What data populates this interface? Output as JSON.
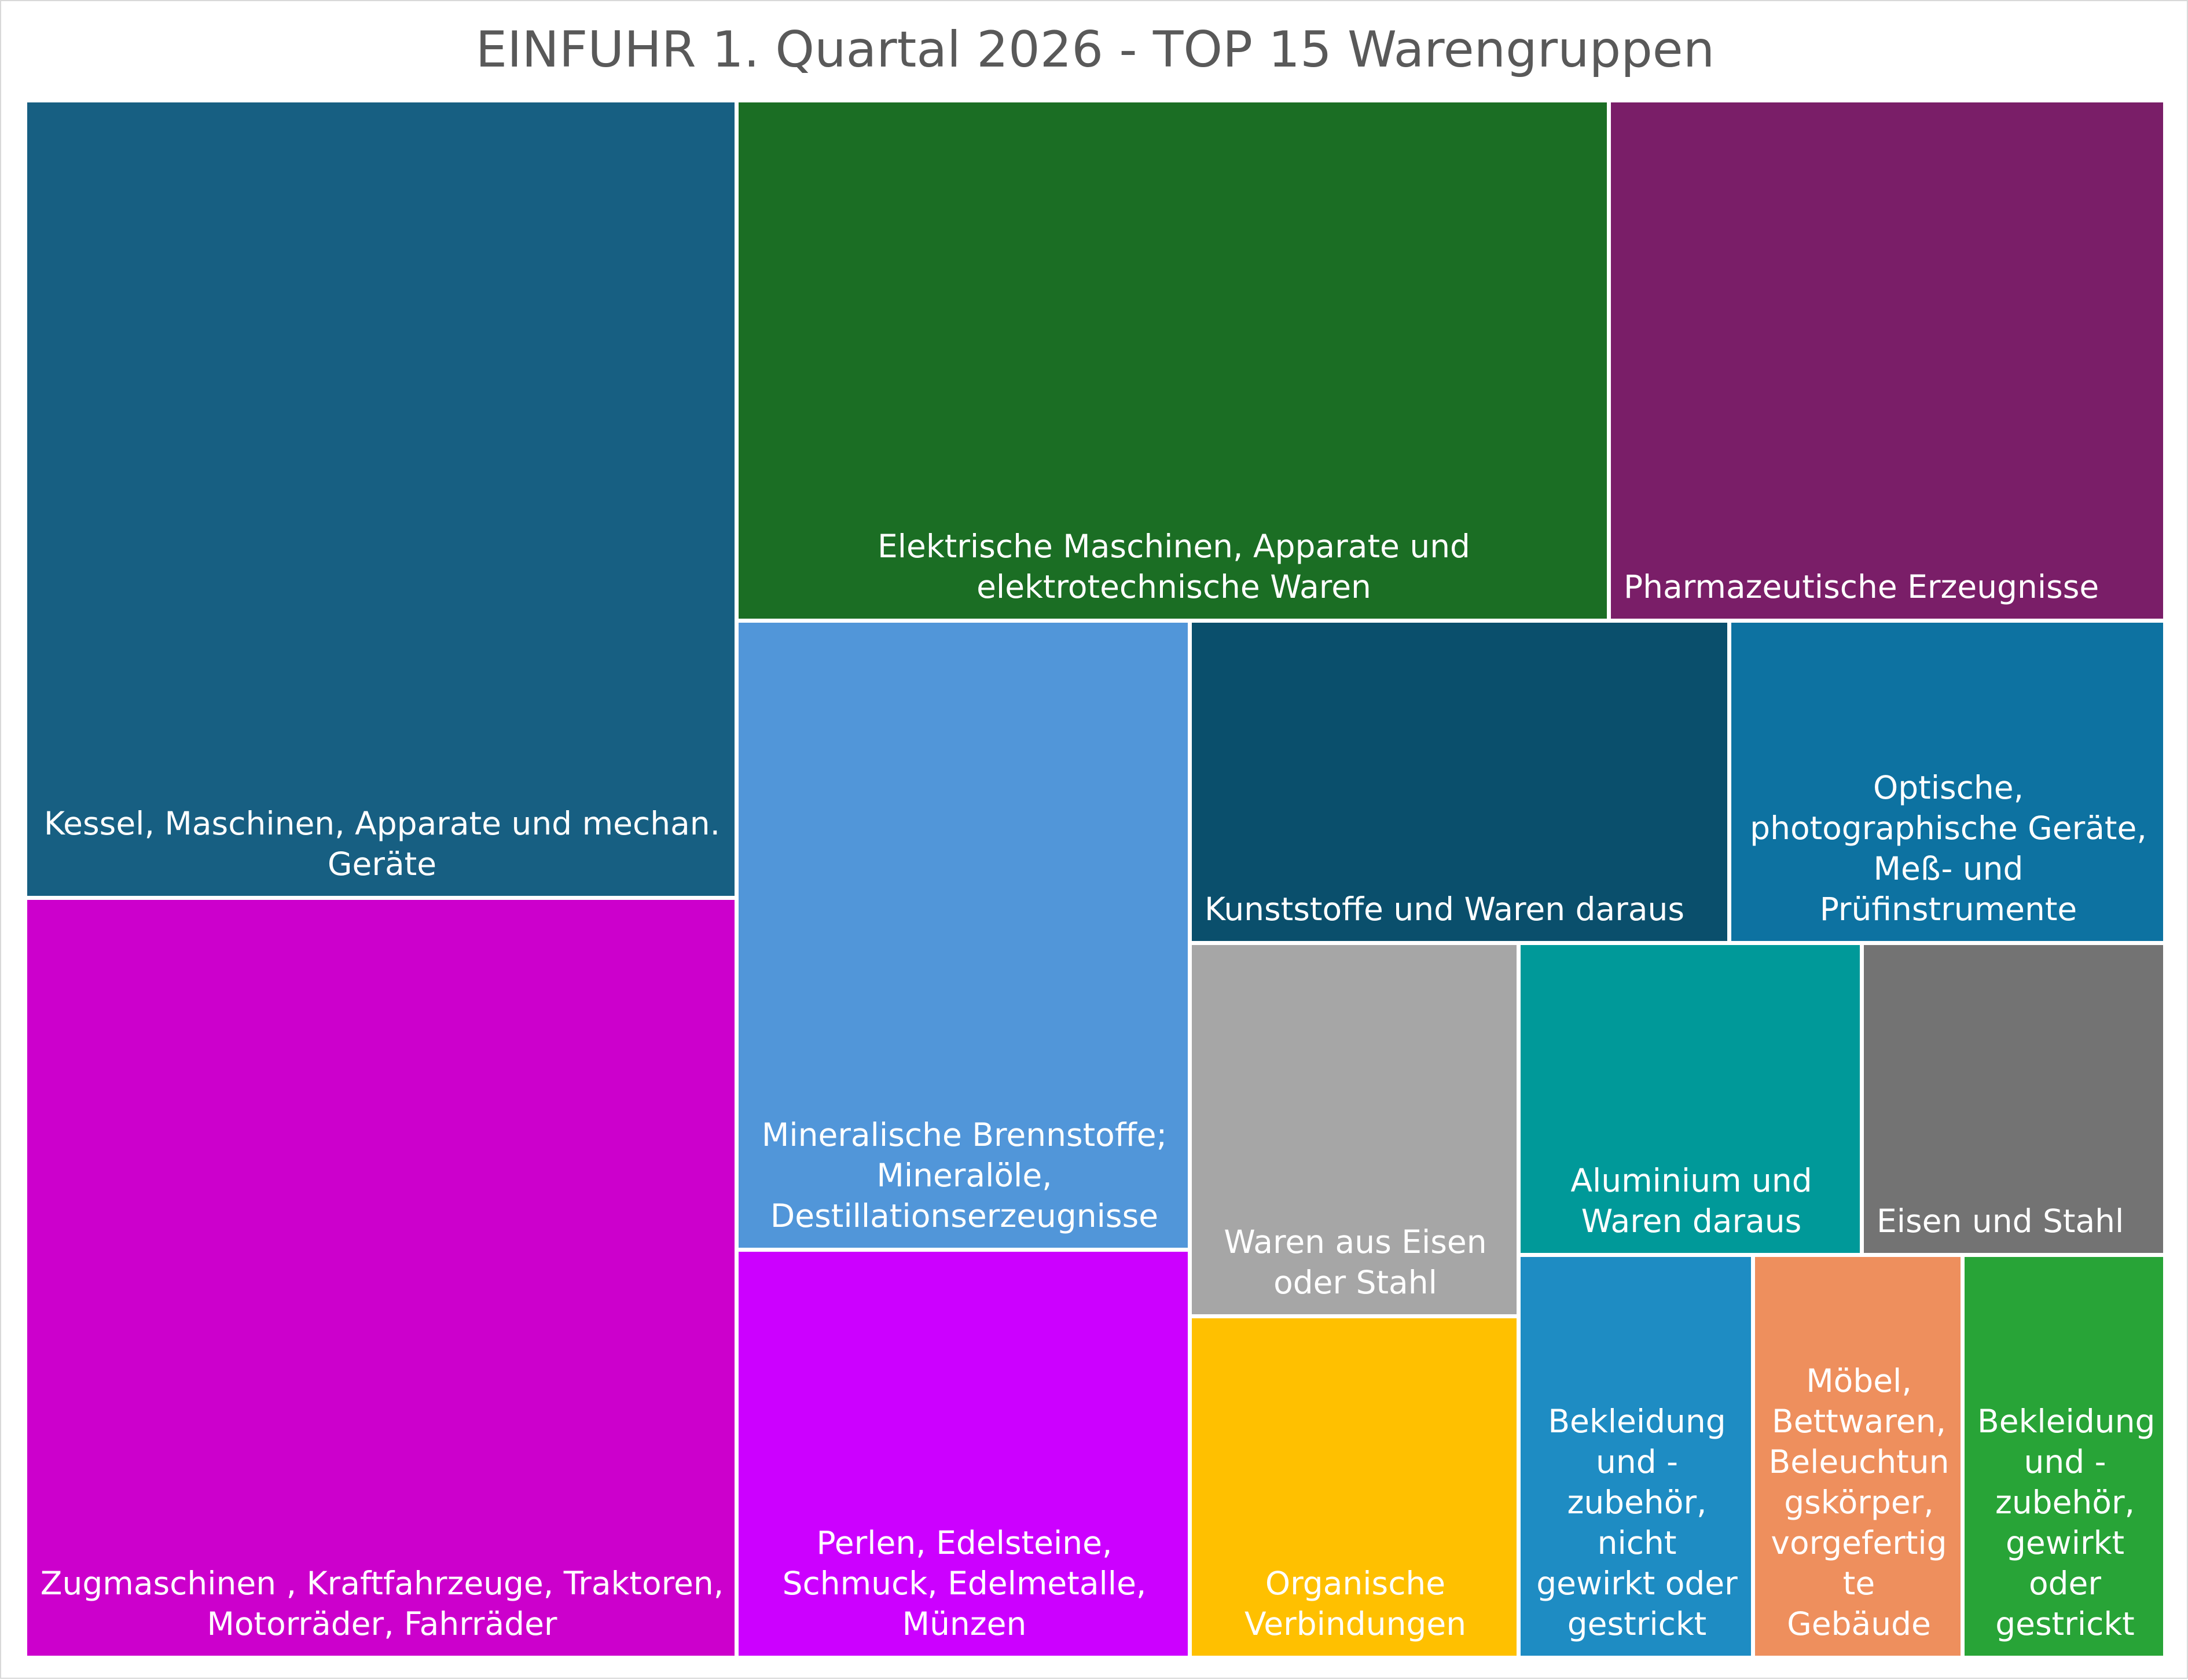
{
  "chart_data": {
    "type": "treemap",
    "title": "EINFUHR 1. Quartal 2026 - TOP 15 Warengruppen",
    "items": [
      {
        "label": "Kessel, Maschinen, Apparate und mechan.\nGeräte",
        "color": "#175f82",
        "align": "center"
      },
      {
        "label": "Zugmaschinen , Kraftfahrzeuge, Traktoren,\nMotorräder, Fahrräder",
        "color": "#cc00cc",
        "align": "center"
      },
      {
        "label": "Elektrische Maschinen, Apparate und\nelektrotechnische Waren",
        "color": "#1b6e24",
        "align": "center"
      },
      {
        "label": "Pharmazeutische Erzeugnisse",
        "color": "#7a1e68",
        "align": "left"
      },
      {
        "label": "Mineralische Brennstoffe;\nMineralöle,\nDestillationserzeugnisse",
        "color": "#5196d9",
        "align": "center"
      },
      {
        "label": "Perlen, Edelsteine,\nSchmuck, Edelmetalle,\nMünzen",
        "color": "#cc00ff",
        "align": "center"
      },
      {
        "label": "Kunststoffe und Waren daraus",
        "color": "#0a4f6c",
        "align": "left"
      },
      {
        "label": "Optische,\nphotographische Geräte,\nMeß- und Prüfinstrumente",
        "color": "#0d72a1",
        "align": "center"
      },
      {
        "label": "Waren aus Eisen\noder Stahl",
        "color": "#a6a6a6",
        "align": "center"
      },
      {
        "label": "Organische\nVerbindungen",
        "color": "#ffc000",
        "align": "center"
      },
      {
        "label": "Aluminium und\nWaren daraus",
        "color": "#009999",
        "align": "center"
      },
      {
        "label": "Eisen und Stahl",
        "color": "#737373",
        "align": "left"
      },
      {
        "label": "Bekleidung\nund -\nzubehör,\nnicht\ngewirkt oder\ngestrickt",
        "color": "#1e8cc3",
        "align": "center"
      },
      {
        "label": "Möbel,\nBettwaren,\nBeleuchtun\ngskörper,\nvorgefertig\nte Gebäude",
        "color": "#ee8f5d",
        "align": "center"
      },
      {
        "label": "Bekleidung\nund -\nzubehör,\ngewirkt\noder\ngestrickt",
        "color": "#28a437",
        "align": "center"
      }
    ]
  }
}
